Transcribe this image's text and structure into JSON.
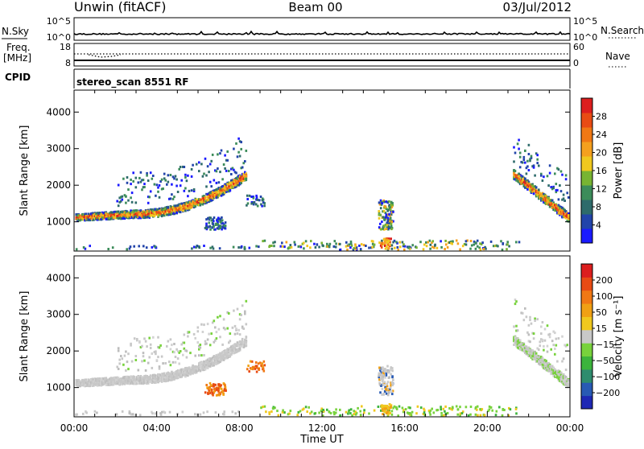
{
  "header": {
    "station": "Unwin (fitACF)",
    "beam": "Beam 00",
    "date": "03/Jul/2012"
  },
  "strip_labels": {
    "nsky": "N.Sky",
    "nsky_top": "10^5",
    "nsky_bottom": "10^0",
    "nsearch": "N.Search",
    "nsearch_top": "10^5",
    "nsearch_bottom": "10^0",
    "freq": "Freq.",
    "freq_unit": "[MHz]",
    "freq_top": "18",
    "freq_bottom": "8",
    "nave": "Nave",
    "nave_top": "60",
    "nave_bottom": "0",
    "cpid": "CPID",
    "cpid_value": "stereo_scan 8551 RF"
  },
  "chart_data": [
    {
      "type": "heatmap",
      "name": "power",
      "ylabel": "Slant Range [km]",
      "ylim": [
        200,
        4600
      ],
      "yticks": [
        1000,
        2000,
        3000,
        4000
      ],
      "xlim": [
        0,
        24
      ],
      "colorbar": {
        "label": "Power [dB]",
        "ticks": [
          "4",
          "8",
          "12",
          "16",
          "20",
          "24",
          "28"
        ],
        "colors": [
          "#1a1aff",
          "#2244aa",
          "#2e6b6b",
          "#3c8c5a",
          "#78b432",
          "#f0c81e",
          "#f5a01e",
          "#f07814",
          "#e84b14",
          "#dc1e1e"
        ]
      },
      "features": [
        {
          "desc": "band",
          "t_start": 0,
          "t_end": 8.3,
          "r_start": 1100,
          "r_end": 2300,
          "level": "high"
        },
        {
          "desc": "patch",
          "t_start": 6.3,
          "t_end": 7.3,
          "r_start": 800,
          "r_end": 1150,
          "level": "low"
        },
        {
          "desc": "patch",
          "t_start": 14.7,
          "t_end": 15.4,
          "r_start": 800,
          "r_end": 1600,
          "level": "mid"
        },
        {
          "desc": "band",
          "t_start": 21.2,
          "t_end": 24,
          "r_start": 2500,
          "r_end": 1100,
          "level": "high"
        }
      ]
    },
    {
      "type": "heatmap",
      "name": "velocity",
      "ylabel": "Slant Range [km]",
      "ylim": [
        200,
        4600
      ],
      "yticks": [
        1000,
        2000,
        3000,
        4000
      ],
      "xlabel": "Time UT",
      "xticks": [
        "00:00",
        "04:00",
        "08:00",
        "12:00",
        "16:00",
        "20:00",
        "00:00"
      ],
      "colorbar": {
        "label": "Velocity [m s⁻¹]",
        "ticks": [
          "200",
          "100",
          "50",
          "15",
          "−15",
          "−50",
          "−100",
          "−200"
        ],
        "colors": [
          "#1e28b4",
          "#285ab4",
          "#2e8c6e",
          "#3cb43c",
          "#78d23c",
          "#c8c8c8",
          "#f0c81e",
          "#f0a014",
          "#f07814",
          "#e84b14",
          "#dc1e1e"
        ]
      }
    }
  ],
  "colors": {
    "frame": "#000000",
    "background": "#ffffff"
  }
}
